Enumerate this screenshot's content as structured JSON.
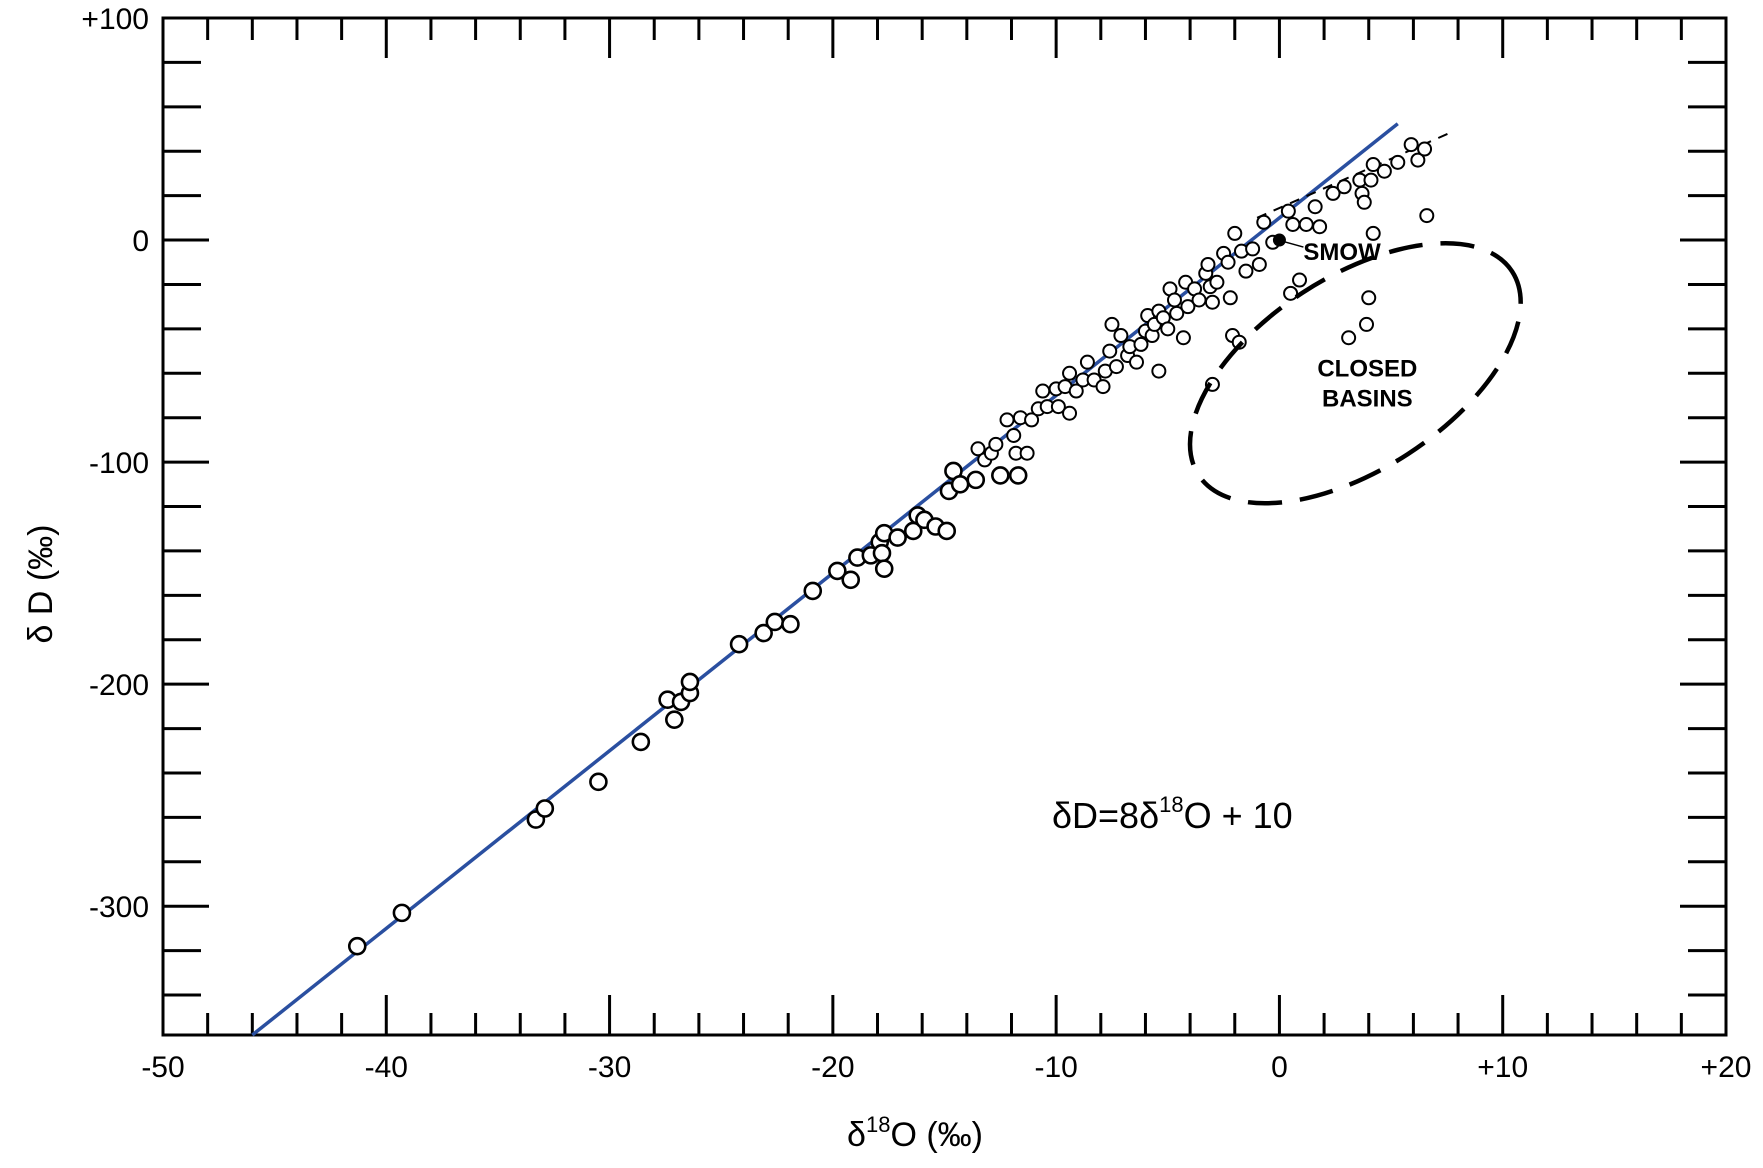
{
  "colors": {
    "meteoric_line": "#2a4fa0",
    "points": "#000000",
    "axis": "#000000",
    "background": "#ffffff"
  },
  "chart_data": {
    "type": "scatter",
    "title": "",
    "xlabel_prefix": "δ",
    "xlabel_sup": "18",
    "xlabel_suffix": "O (‰)",
    "ylabel": "δ D (‰)",
    "xlim": [
      -50,
      20
    ],
    "ylim": [
      -358,
      100
    ],
    "grid": false,
    "legend": "none",
    "x_ticks": [
      {
        "value": -50,
        "label": "-50"
      },
      {
        "value": -40,
        "label": "-40"
      },
      {
        "value": -30,
        "label": "-30"
      },
      {
        "value": -20,
        "label": "-20"
      },
      {
        "value": -10,
        "label": "-10"
      },
      {
        "value": 0,
        "label": "0"
      },
      {
        "value": 10,
        "label": "+10"
      },
      {
        "value": 20,
        "label": "+20"
      }
    ],
    "y_ticks": [
      {
        "value": 100,
        "label": "+100"
      },
      {
        "value": 0,
        "label": "0"
      },
      {
        "value": -100,
        "label": "-100"
      },
      {
        "value": -200,
        "label": "-200"
      },
      {
        "value": -300,
        "label": "-300"
      }
    ],
    "minor_tick_step_x": 2,
    "minor_tick_step_y": 20,
    "meteoric_water_line": {
      "equation_prefix": "δD=8δ",
      "equation_sup": "18",
      "equation_suffix": "O + 10",
      "slope": 8,
      "intercept": 10,
      "x_range": [
        -46,
        5.3
      ]
    },
    "evaporation_trend": {
      "style": "dashed",
      "x": [
        -1,
        7.8
      ],
      "y": [
        10,
        49
      ]
    },
    "smow": {
      "label": "SMOW",
      "x": 0,
      "y": 0
    },
    "closed_basins": {
      "label_line1": "CLOSED",
      "label_line2": "BASINS",
      "center": [
        3.4,
        -60
      ],
      "rx_x": 4.7,
      "ry_y": 65
    },
    "series": [
      {
        "marker": "open-circle",
        "points": [
          [
            -41.3,
            -318
          ],
          [
            -39.3,
            -303
          ],
          [
            -33.3,
            -261
          ],
          [
            -32.9,
            -256
          ],
          [
            -30.5,
            -244
          ],
          [
            -28.6,
            -226
          ],
          [
            -27.4,
            -207
          ],
          [
            -27.1,
            -216
          ],
          [
            -26.8,
            -208
          ],
          [
            -26.4,
            -204
          ],
          [
            -26.4,
            -199
          ],
          [
            -24.2,
            -182
          ],
          [
            -23.1,
            -177
          ],
          [
            -22.6,
            -172
          ],
          [
            -21.9,
            -173
          ],
          [
            -20.9,
            -158
          ],
          [
            -19.8,
            -149
          ],
          [
            -19.2,
            -153
          ],
          [
            -18.9,
            -143
          ],
          [
            -18.3,
            -142
          ],
          [
            -17.9,
            -136
          ],
          [
            -17.8,
            -141
          ],
          [
            -17.7,
            -132
          ],
          [
            -17.7,
            -148
          ],
          [
            -17.1,
            -134
          ],
          [
            -16.4,
            -131
          ],
          [
            -16.2,
            -124
          ],
          [
            -15.9,
            -126
          ],
          [
            -15.4,
            -129
          ],
          [
            -14.9,
            -131
          ],
          [
            -14.8,
            -113
          ],
          [
            -14.6,
            -104
          ],
          [
            -14.3,
            -110
          ],
          [
            -13.6,
            -108
          ],
          [
            -13.5,
            -94
          ],
          [
            -13.2,
            -99
          ],
          [
            -12.9,
            -96
          ],
          [
            -12.7,
            -92
          ],
          [
            -12.5,
            -106
          ],
          [
            -12.2,
            -81
          ],
          [
            -11.9,
            -88
          ],
          [
            -11.8,
            -96
          ],
          [
            -11.7,
            -106
          ],
          [
            -11.6,
            -80
          ],
          [
            -11.3,
            -96
          ],
          [
            -11.1,
            -81
          ],
          [
            -10.8,
            -76
          ],
          [
            -10.6,
            -68
          ],
          [
            -10.4,
            -75
          ],
          [
            -10.0,
            -67
          ],
          [
            -9.9,
            -75
          ],
          [
            -9.6,
            -66
          ],
          [
            -9.4,
            -60
          ],
          [
            -9.4,
            -78
          ],
          [
            -9.1,
            -68
          ],
          [
            -8.8,
            -63
          ],
          [
            -8.6,
            -55
          ],
          [
            -8.3,
            -63
          ],
          [
            -7.9,
            -66
          ],
          [
            -7.8,
            -59
          ],
          [
            -7.6,
            -50
          ],
          [
            -7.5,
            -38
          ],
          [
            -7.3,
            -57
          ],
          [
            -7.1,
            -43
          ],
          [
            -6.8,
            -52
          ],
          [
            -6.7,
            -48
          ],
          [
            -6.4,
            -55
          ],
          [
            -6.2,
            -47
          ],
          [
            -6.0,
            -41
          ],
          [
            -5.9,
            -34
          ],
          [
            -5.7,
            -43
          ],
          [
            -5.6,
            -38
          ],
          [
            -5.4,
            -32
          ],
          [
            -5.4,
            -59
          ],
          [
            -5.2,
            -35
          ],
          [
            -5.0,
            -40
          ],
          [
            -4.9,
            -22
          ],
          [
            -4.7,
            -27
          ],
          [
            -4.6,
            -33
          ],
          [
            -4.3,
            -44
          ],
          [
            -4.2,
            -19
          ],
          [
            -4.1,
            -30
          ],
          [
            -3.8,
            -22
          ],
          [
            -3.6,
            -27
          ],
          [
            -3.3,
            -15
          ],
          [
            -3.2,
            -11
          ],
          [
            -3.1,
            -21
          ],
          [
            -3.0,
            -28
          ],
          [
            -3.0,
            -65
          ],
          [
            -2.8,
            -19
          ],
          [
            -2.5,
            -6
          ],
          [
            -2.3,
            -10
          ],
          [
            -2.2,
            -26
          ],
          [
            -2.1,
            -43
          ],
          [
            -2.0,
            3
          ],
          [
            -1.8,
            -46
          ],
          [
            -1.7,
            -5
          ],
          [
            -1.5,
            -14
          ],
          [
            -1.2,
            -4
          ],
          [
            -0.9,
            -11
          ],
          [
            -0.7,
            8
          ],
          [
            -0.3,
            -1
          ],
          [
            0.4,
            13
          ],
          [
            0.5,
            -24
          ],
          [
            0.6,
            7
          ],
          [
            0.9,
            -18
          ],
          [
            1.2,
            7
          ],
          [
            1.6,
            15
          ],
          [
            1.8,
            6
          ],
          [
            2.4,
            21
          ],
          [
            2.9,
            24
          ],
          [
            3.1,
            -44
          ],
          [
            3.6,
            27
          ],
          [
            3.7,
            21
          ],
          [
            3.8,
            17
          ],
          [
            3.9,
            -38
          ],
          [
            4.0,
            -26
          ],
          [
            4.1,
            27
          ],
          [
            4.2,
            3
          ],
          [
            4.2,
            34
          ],
          [
            4.7,
            31
          ],
          [
            5.3,
            35
          ],
          [
            5.9,
            43
          ],
          [
            6.2,
            36
          ],
          [
            6.5,
            41
          ],
          [
            6.6,
            11
          ]
        ]
      }
    ]
  }
}
